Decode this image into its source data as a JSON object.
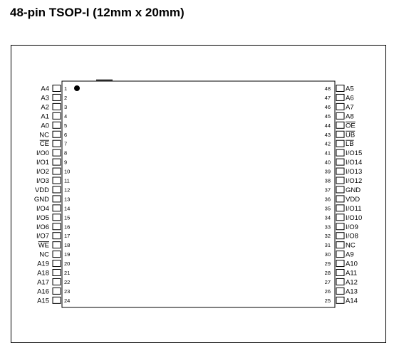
{
  "title": "48-pin TSOP-I (12mm x 20mm)",
  "package": {
    "left_pins": [
      {
        "num": "1",
        "name": "A4"
      },
      {
        "num": "2",
        "name": "A3"
      },
      {
        "num": "3",
        "name": "A2"
      },
      {
        "num": "4",
        "name": "A1"
      },
      {
        "num": "5",
        "name": "A0"
      },
      {
        "num": "6",
        "name": "NC"
      },
      {
        "num": "7",
        "name": "CE",
        "overbar": true
      },
      {
        "num": "8",
        "name": "I/O0"
      },
      {
        "num": "9",
        "name": "I/O1"
      },
      {
        "num": "10",
        "name": "I/O2"
      },
      {
        "num": "11",
        "name": "I/O3"
      },
      {
        "num": "12",
        "name": "VDD"
      },
      {
        "num": "13",
        "name": "GND"
      },
      {
        "num": "14",
        "name": "I/O4"
      },
      {
        "num": "15",
        "name": "I/O5"
      },
      {
        "num": "16",
        "name": "I/O6"
      },
      {
        "num": "17",
        "name": "I/O7"
      },
      {
        "num": "18",
        "name": "WE",
        "overbar": true
      },
      {
        "num": "19",
        "name": "NC"
      },
      {
        "num": "20",
        "name": "A19"
      },
      {
        "num": "21",
        "name": "A18"
      },
      {
        "num": "22",
        "name": "A17"
      },
      {
        "num": "23",
        "name": "A16"
      },
      {
        "num": "24",
        "name": "A15"
      }
    ],
    "right_pins": [
      {
        "num": "48",
        "name": "A5"
      },
      {
        "num": "47",
        "name": "A6"
      },
      {
        "num": "46",
        "name": "A7"
      },
      {
        "num": "45",
        "name": "A8"
      },
      {
        "num": "44",
        "name": "OE",
        "overbar": true
      },
      {
        "num": "43",
        "name": "UB",
        "overbar": true
      },
      {
        "num": "42",
        "name": "LB",
        "overbar": true
      },
      {
        "num": "41",
        "name": "I/O15"
      },
      {
        "num": "40",
        "name": "I/O14"
      },
      {
        "num": "39",
        "name": "I/O13"
      },
      {
        "num": "38",
        "name": "I/O12"
      },
      {
        "num": "37",
        "name": "GND"
      },
      {
        "num": "36",
        "name": "VDD"
      },
      {
        "num": "35",
        "name": "I/O11"
      },
      {
        "num": "34",
        "name": "I/O10"
      },
      {
        "num": "33",
        "name": "I/O9"
      },
      {
        "num": "32",
        "name": "I/O8"
      },
      {
        "num": "31",
        "name": "NC"
      },
      {
        "num": "30",
        "name": "A9"
      },
      {
        "num": "29",
        "name": "A10"
      },
      {
        "num": "28",
        "name": "A11"
      },
      {
        "num": "27",
        "name": "A12"
      },
      {
        "num": "26",
        "name": "A13"
      },
      {
        "num": "25",
        "name": "A14"
      }
    ]
  }
}
